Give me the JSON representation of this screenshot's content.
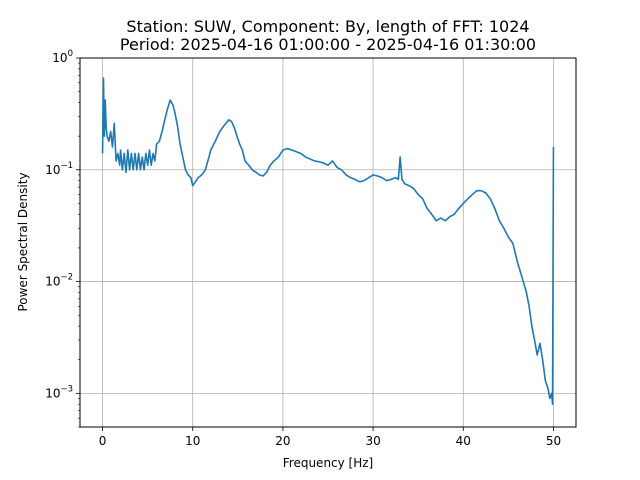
{
  "chart_data": {
    "type": "line",
    "title": "Station: SUW, Component: By, length of FFT: 1024",
    "subtitle": "Period: 2025-04-16 01:00:00 - 2025-04-16 01:30:00",
    "xlabel": "Frequency [Hz]",
    "ylabel": "Power Spectral Density",
    "xlim": [
      -2.5,
      52.5
    ],
    "ylim": [
      0.0005,
      1
    ],
    "yscale": "log",
    "grid": true,
    "line_color": "#1f77b4",
    "x_ticks": [
      0,
      10,
      20,
      30,
      40,
      50
    ],
    "y_ticks": [
      {
        "value": 0.001,
        "base": "10",
        "exp": "−3"
      },
      {
        "value": 0.01,
        "base": "10",
        "exp": "−2"
      },
      {
        "value": 0.1,
        "base": "10",
        "exp": "−1"
      },
      {
        "value": 1,
        "base": "10",
        "exp": "0"
      }
    ],
    "series": [
      {
        "x": [
          0,
          0.1,
          0.2,
          0.3,
          0.4,
          0.5,
          0.7,
          0.9,
          1.1,
          1.3,
          1.5,
          1.7,
          1.9,
          2.0,
          2.2,
          2.4,
          2.6,
          2.8,
          3.0,
          3.2,
          3.4,
          3.6,
          3.8,
          4.0,
          4.2,
          4.4,
          4.6,
          4.8,
          5.0,
          5.2,
          5.4,
          5.6,
          5.8,
          6.0,
          6.3,
          6.6,
          6.9,
          7.2,
          7.5,
          7.8,
          8.0,
          8.3,
          8.6,
          8.9,
          9.2,
          9.5,
          9.8,
          10.0,
          10.3,
          10.6,
          11.0,
          11.4,
          11.8,
          12.0,
          12.5,
          13.0,
          13.5,
          14.0,
          14.3,
          14.6,
          14.9,
          15.2,
          15.5,
          15.8,
          16.2,
          16.6,
          17.0,
          17.4,
          17.8,
          18.2,
          18.6,
          19.0,
          19.5,
          20.0,
          20.5,
          21.0,
          21.5,
          22.0,
          22.5,
          23.0,
          23.5,
          24.0,
          24.5,
          25.0,
          25.5,
          26.0,
          26.5,
          27.0,
          27.5,
          28.0,
          28.5,
          29.0,
          29.5,
          30.0,
          30.5,
          31.0,
          31.5,
          32.0,
          32.5,
          32.8,
          33.0,
          33.2,
          33.5,
          34.0,
          34.5,
          35.0,
          35.5,
          36.0,
          36.5,
          37.0,
          37.5,
          38.0,
          38.5,
          39.0,
          39.5,
          40.0,
          40.5,
          41.0,
          41.5,
          42.0,
          42.5,
          43.0,
          43.5,
          44.0,
          44.5,
          45.0,
          45.5,
          46.0,
          46.5,
          47.0,
          47.3,
          47.6,
          47.9,
          48.2,
          48.5,
          48.8,
          49.1,
          49.4,
          49.6,
          49.8,
          49.9,
          50.0
        ],
        "y": [
          0.14,
          0.66,
          0.2,
          0.42,
          0.24,
          0.2,
          0.18,
          0.22,
          0.16,
          0.26,
          0.12,
          0.14,
          0.11,
          0.15,
          0.1,
          0.14,
          0.095,
          0.15,
          0.1,
          0.14,
          0.1,
          0.14,
          0.1,
          0.14,
          0.1,
          0.13,
          0.1,
          0.14,
          0.11,
          0.15,
          0.11,
          0.14,
          0.12,
          0.17,
          0.18,
          0.22,
          0.28,
          0.35,
          0.42,
          0.38,
          0.33,
          0.25,
          0.17,
          0.13,
          0.1,
          0.09,
          0.085,
          0.072,
          0.078,
          0.085,
          0.09,
          0.1,
          0.13,
          0.15,
          0.18,
          0.22,
          0.25,
          0.28,
          0.27,
          0.24,
          0.2,
          0.17,
          0.15,
          0.12,
          0.11,
          0.1,
          0.095,
          0.09,
          0.088,
          0.095,
          0.11,
          0.12,
          0.13,
          0.15,
          0.155,
          0.15,
          0.145,
          0.14,
          0.13,
          0.125,
          0.12,
          0.118,
          0.115,
          0.11,
          0.12,
          0.105,
          0.1,
          0.09,
          0.085,
          0.082,
          0.078,
          0.08,
          0.085,
          0.09,
          0.088,
          0.085,
          0.08,
          0.082,
          0.085,
          0.082,
          0.13,
          0.082,
          0.075,
          0.072,
          0.068,
          0.06,
          0.055,
          0.045,
          0.04,
          0.035,
          0.037,
          0.035,
          0.038,
          0.04,
          0.045,
          0.05,
          0.055,
          0.06,
          0.065,
          0.065,
          0.062,
          0.055,
          0.045,
          0.035,
          0.03,
          0.025,
          0.022,
          0.015,
          0.011,
          0.008,
          0.006,
          0.004,
          0.003,
          0.0022,
          0.0028,
          0.002,
          0.0013,
          0.0011,
          0.0009,
          0.001,
          0.0008,
          0.16
        ]
      }
    ]
  }
}
